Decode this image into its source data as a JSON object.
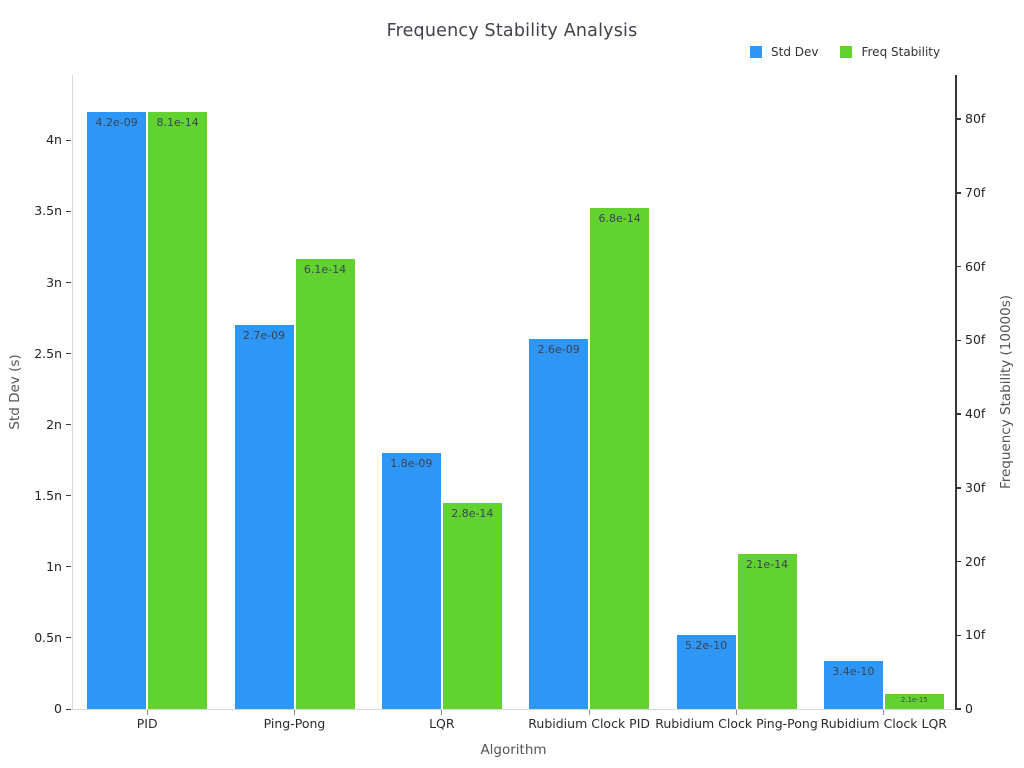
{
  "title": "Frequency Stability Analysis",
  "chart_data": {
    "type": "bar",
    "title": "Frequency Stability Analysis",
    "categories": [
      "PID",
      "Ping-Pong",
      "LQR",
      "Rubidium Clock PID",
      "Rubidium Clock Ping-Pong",
      "Rubidium Clock LQR"
    ],
    "series": [
      {
        "name": "Std Dev",
        "axis": "left",
        "color": "#2E96F5",
        "values": [
          4.2e-09,
          2.7e-09,
          1.8e-09,
          2.6e-09,
          5.2e-10,
          3.4e-10
        ],
        "labels": [
          "4.2e-09",
          "2.7e-09",
          "1.8e-09",
          "2.6e-09",
          "5.2e-10",
          "3.4e-10"
        ]
      },
      {
        "name": "Freq Stability",
        "axis": "right",
        "color": "#61D22F",
        "values": [
          8.1e-14,
          6.1e-14,
          2.8e-14,
          6.8e-14,
          2.1e-14,
          2.1e-15
        ],
        "labels": [
          "8.1e-14",
          "6.1e-14",
          "2.8e-14",
          "6.8e-14",
          "2.1e-14",
          "2.1e-15"
        ]
      }
    ],
    "xlabel": "Algorithm",
    "ylabel_left": "Std Dev (s)",
    "ylabel_right": "Frequency Stability (10000s)",
    "ylim_left": [
      0,
      4.46e-09
    ],
    "ylim_right": [
      0,
      8.6e-14
    ],
    "yticks_left": {
      "values": [
        0,
        5e-10,
        1e-09,
        1.5e-09,
        2e-09,
        2.5e-09,
        3e-09,
        3.5e-09,
        4e-09
      ],
      "labels": [
        "0",
        "0.5n",
        "1n",
        "1.5n",
        "2n",
        "2.5n",
        "3n",
        "3.5n",
        "4n"
      ]
    },
    "yticks_right": {
      "values": [
        0,
        1e-14,
        2e-14,
        3e-14,
        4e-14,
        5e-14,
        6e-14,
        7e-14,
        8e-14
      ],
      "labels": [
        "0",
        "10f",
        "20f",
        "30f",
        "40f",
        "50f",
        "60f",
        "70f",
        "80f"
      ]
    },
    "grid": false,
    "legend_position": "top-right"
  }
}
